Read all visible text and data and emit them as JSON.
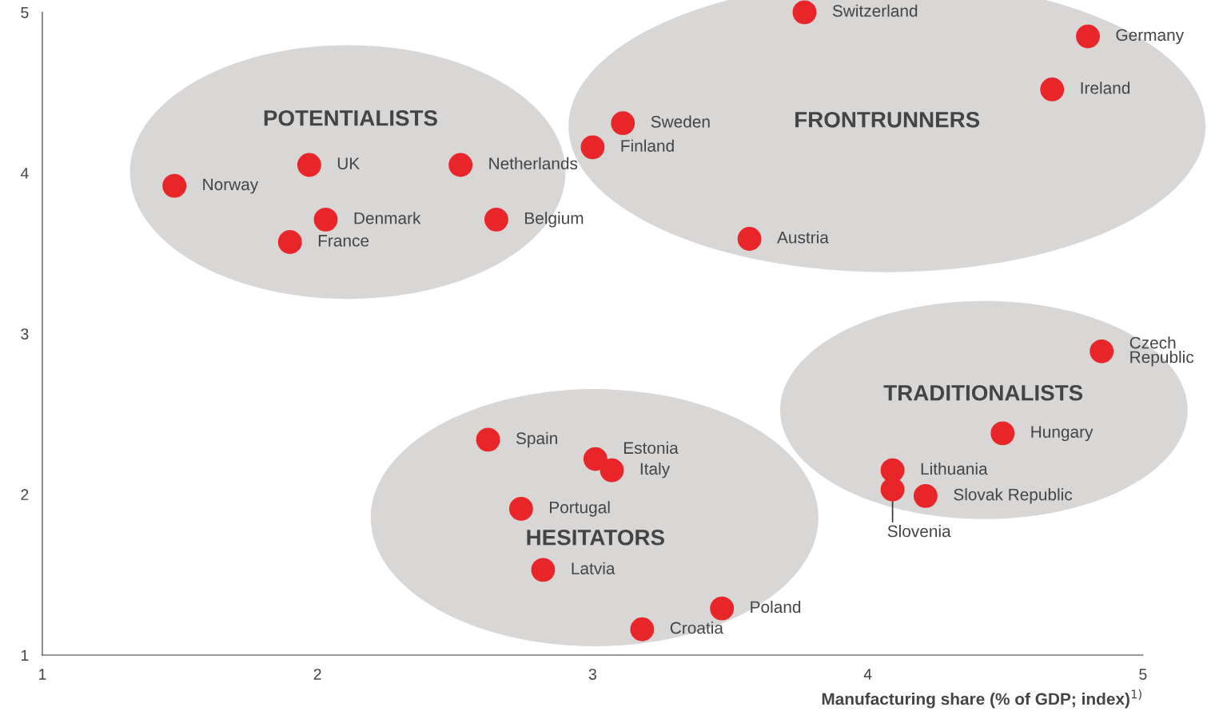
{
  "chart_data": {
    "type": "scatter",
    "xlabel": "Manufacturing share (% of GDP; index)$^{1)}$",
    "xlim": [
      1,
      5
    ],
    "xticks": [
      1,
      2,
      3,
      4,
      5
    ],
    "ylim": [
      1,
      5
    ],
    "yticks": [
      1,
      2,
      3,
      4,
      5
    ],
    "grid": false,
    "legend": false,
    "marker": "circle",
    "series": [
      {
        "color": "#e8262a",
        "x": [
          3.77,
          4.8,
          4.67,
          3.11,
          3.0,
          3.57,
          1.97,
          2.52,
          1.48,
          2.03,
          2.65,
          1.9,
          4.85,
          4.49,
          4.09,
          4.09,
          4.21,
          2.62,
          3.01,
          3.07,
          2.74,
          2.82,
          3.47,
          3.18
        ],
        "values": [
          5.0,
          4.85,
          4.52,
          4.31,
          4.16,
          3.59,
          4.05,
          4.05,
          3.92,
          3.71,
          3.71,
          3.57,
          2.89,
          2.38,
          2.15,
          2.03,
          1.99,
          2.34,
          2.22,
          2.15,
          1.91,
          1.53,
          1.29,
          1.16
        ]
      }
    ],
    "annotations": [
      {
        "text": "Switzerland",
        "x": 3.77,
        "y": 5.0
      },
      {
        "text": "Germany",
        "x": 4.8,
        "y": 4.85
      },
      {
        "text": "Ireland",
        "x": 4.67,
        "y": 4.52
      },
      {
        "text": "Sweden",
        "x": 3.11,
        "y": 4.31
      },
      {
        "text": "Finland",
        "x": 3.0,
        "y": 4.16
      },
      {
        "text": "Austria",
        "x": 3.57,
        "y": 3.59
      },
      {
        "text": "UK",
        "x": 1.97,
        "y": 4.05
      },
      {
        "text": "Netherlands",
        "x": 2.52,
        "y": 4.05
      },
      {
        "text": "Norway",
        "x": 1.48,
        "y": 3.92
      },
      {
        "text": "Denmark",
        "x": 2.03,
        "y": 3.71
      },
      {
        "text": "Belgium",
        "x": 2.65,
        "y": 3.71
      },
      {
        "text": "France",
        "x": 1.9,
        "y": 3.57
      },
      {
        "text": "Czech\nRepublic",
        "x": 4.85,
        "y": 2.89
      },
      {
        "text": "Hungary",
        "x": 4.49,
        "y": 2.38
      },
      {
        "text": "Lithuania",
        "x": 4.09,
        "y": 2.15
      },
      {
        "text": "Slovenia",
        "x": 4.09,
        "y": 2.03
      },
      {
        "text": "Slovak Republic",
        "x": 4.21,
        "y": 1.99
      },
      {
        "text": "Spain",
        "x": 2.62,
        "y": 2.34
      },
      {
        "text": "Estonia",
        "x": 3.01,
        "y": 2.22
      },
      {
        "text": "Italy",
        "x": 3.07,
        "y": 2.15
      },
      {
        "text": "Portugal",
        "x": 2.74,
        "y": 1.91
      },
      {
        "text": "Latvia",
        "x": 2.82,
        "y": 1.53
      },
      {
        "text": "Poland",
        "x": 3.47,
        "y": 1.29
      },
      {
        "text": "Croatia",
        "x": 3.18,
        "y": 1.16
      },
      "POTENTIALISTS",
      "FRONTRUNNERS",
      "TRADITIONALISTS",
      "HESITATORS"
    ]
  }
}
